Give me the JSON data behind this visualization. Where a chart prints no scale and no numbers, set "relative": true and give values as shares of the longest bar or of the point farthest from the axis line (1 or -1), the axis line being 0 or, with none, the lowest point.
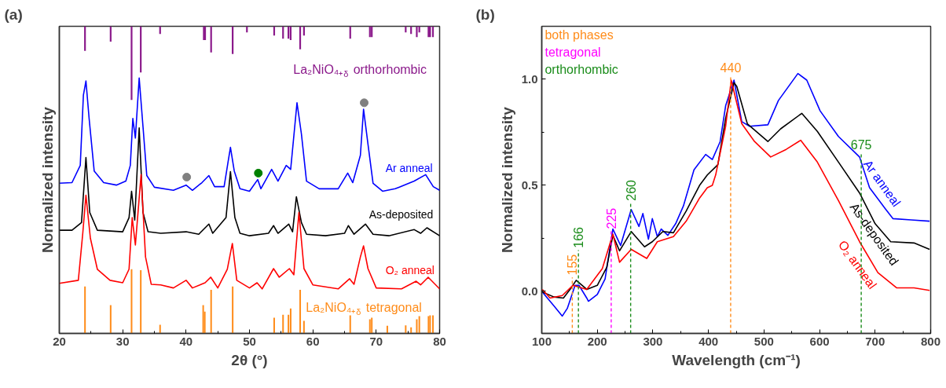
{
  "chart_data": [
    {
      "type": "line",
      "title": "(a)",
      "xlabel": "2θ (°)",
      "ylabel": "Normalized intensity",
      "relative": true,
      "tick_labels": "x",
      "xlim": [
        20,
        80
      ],
      "xticks": [
        20,
        {
          "value": 25,
          "label": null
        },
        30,
        {
          "value": 35,
          "label": null
        },
        40,
        {
          "value": 45,
          "label": null
        },
        50,
        {
          "value": 55,
          "label": null
        },
        60,
        {
          "value": 65,
          "label": null
        },
        70,
        {
          "value": 75,
          "label": null
        },
        80
      ],
      "series": [
        {
          "type": "line",
          "name": "La₂NiO₄₊$_{δ}$ orthorhombic",
          "color": "#8b1a8b",
          "x": [
            24.05,
            24.05,
            null,
            28.1,
            28.1,
            null,
            31.4,
            31.4,
            null,
            32.85,
            32.85,
            null,
            35.9,
            35.9,
            null,
            42.8,
            42.8,
            null,
            43.0,
            43.0,
            null,
            43.95,
            43.95,
            null,
            47.35,
            47.35,
            null,
            49.6,
            49.6,
            null,
            53.9,
            53.9,
            null,
            55.3,
            55.3,
            null,
            56.15,
            56.15,
            null,
            56.5,
            56.5,
            null,
            58.0,
            58.0,
            null,
            58.6,
            58.6,
            null,
            65.9,
            65.9,
            null,
            69.0,
            69.0,
            null,
            69.3,
            69.3,
            null,
            74.65,
            74.65,
            null,
            75.5,
            75.5,
            null,
            76.4,
            76.4,
            null,
            76.8,
            76.8,
            null,
            78.25,
            78.25,
            null,
            78.5,
            78.5,
            null,
            78.95,
            78.95
          ],
          "values": [
            1,
            0.92,
            null,
            1,
            0.95,
            null,
            1,
            0.76,
            null,
            1,
            0.85,
            null,
            1,
            0.975,
            null,
            1,
            0.955,
            null,
            1,
            0.955,
            null,
            1,
            0.915,
            null,
            1,
            0.91,
            null,
            1,
            0.98,
            null,
            1,
            0.97,
            null,
            1,
            0.96,
            null,
            1,
            0.96,
            null,
            1,
            0.955,
            null,
            1,
            0.925,
            null,
            1,
            0.97,
            null,
            1,
            0.96,
            null,
            1,
            0.965,
            null,
            1,
            0.965,
            null,
            1,
            0.98,
            null,
            1,
            0.975,
            null,
            1,
            0.965,
            null,
            1,
            0.98,
            null,
            1,
            0.965,
            null,
            1,
            0.965,
            null,
            1,
            0.965
          ]
        },
        {
          "type": "line",
          "name": "Ar anneal",
          "color": "#0000ff",
          "x": [
            20,
            22,
            23.3,
            23.8,
            24.2,
            24.7,
            25.5,
            27,
            29,
            30.5,
            31.2,
            31.6,
            32.0,
            32.6,
            33.2,
            33.8,
            35,
            38,
            40,
            41,
            42.5,
            43.6,
            44.5,
            46,
            46.6,
            47.0,
            47.6,
            48.5,
            50,
            51.3,
            51.8,
            53.5,
            54.5,
            55.8,
            56.5,
            57.5,
            58.2,
            59,
            61,
            64,
            65.5,
            66.3,
            67.5,
            68,
            68.7,
            69.5,
            71,
            73,
            76,
            77.8,
            79,
            80
          ],
          "values": [
            0.489,
            0.491,
            0.547,
            0.776,
            0.822,
            0.7,
            0.529,
            0.491,
            0.483,
            0.496,
            0.547,
            0.7,
            0.636,
            0.832,
            0.674,
            0.514,
            0.476,
            0.466,
            0.483,
            0.466,
            0.491,
            0.514,
            0.478,
            0.478,
            0.555,
            0.606,
            0.529,
            0.471,
            0.463,
            0.501,
            0.471,
            0.534,
            0.496,
            0.547,
            0.534,
            0.751,
            0.649,
            0.496,
            0.471,
            0.471,
            0.522,
            0.491,
            0.58,
            0.73,
            0.616,
            0.489,
            0.463,
            0.471,
            0.496,
            0.517,
            0.478,
            0.466
          ]
        },
        {
          "type": "line",
          "name": "As-deposited",
          "color": "#000000",
          "x": [
            20,
            22,
            23.5,
            24.2,
            24.8,
            26,
            30,
            31.0,
            31.4,
            31.9,
            32.6,
            33.2,
            34,
            36,
            40,
            42,
            43.6,
            44.2,
            46.3,
            47.0,
            47.7,
            48.5,
            50,
            53,
            53.8,
            54.5,
            56.2,
            56.8,
            57.4,
            58.2,
            59,
            62,
            65,
            65.6,
            66.5,
            68.3,
            69.5,
            72,
            76,
            77,
            78,
            80
          ],
          "values": [
            0.336,
            0.336,
            0.361,
            0.573,
            0.394,
            0.336,
            0.331,
            0.377,
            0.463,
            0.369,
            0.669,
            0.394,
            0.331,
            0.326,
            0.331,
            0.323,
            0.356,
            0.326,
            0.377,
            0.527,
            0.377,
            0.326,
            0.318,
            0.326,
            0.351,
            0.326,
            0.356,
            0.331,
            0.445,
            0.361,
            0.323,
            0.318,
            0.326,
            0.351,
            0.323,
            0.356,
            0.323,
            0.318,
            0.338,
            0.326,
            0.344,
            0.318
          ]
        },
        {
          "type": "line",
          "name": "O₂ anneal",
          "color": "#ff0000",
          "x": [
            20,
            23,
            23.7,
            24.2,
            24.9,
            26,
            28,
            30,
            31.0,
            31.5,
            32.0,
            32.9,
            33.6,
            34.5,
            36,
            38,
            40,
            41,
            43,
            43.9,
            45,
            46.5,
            47.3,
            48,
            50,
            51.2,
            52,
            53.8,
            54.7,
            56.3,
            57.0,
            57.8,
            58.6,
            60,
            64,
            65.8,
            66.5,
            67.5,
            68.0,
            68.7,
            70,
            74,
            76.3,
            77,
            78.2,
            80
          ],
          "values": [
            0.163,
            0.173,
            0.326,
            0.45,
            0.31,
            0.209,
            0.173,
            0.165,
            0.209,
            0.377,
            0.288,
            0.517,
            0.249,
            0.16,
            0.158,
            0.148,
            0.173,
            0.148,
            0.165,
            0.183,
            0.148,
            0.209,
            0.293,
            0.173,
            0.148,
            0.165,
            0.145,
            0.211,
            0.183,
            0.211,
            0.191,
            0.394,
            0.211,
            0.158,
            0.145,
            0.178,
            0.16,
            0.249,
            0.285,
            0.211,
            0.148,
            0.145,
            0.17,
            0.158,
            0.183,
            0.145
          ]
        },
        {
          "type": "scatter",
          "colors": [
            "#808080",
            "#008000",
            "#808080"
          ],
          "x": [
            40.1,
            51.4,
            68.1
          ],
          "values": [
            0.509,
            0.522,
            0.751
          ]
        },
        {
          "type": "bar",
          "name": "La₂NiO₄₊$_{δ}$ tetragonal",
          "color": "#ff8c1a",
          "x": [
            24.05,
            28.1,
            31.4,
            32.85,
            35.9,
            42.7,
            42.95,
            43.95,
            47.35,
            53.9,
            55.3,
            56.15,
            56.5,
            58.0,
            58.6,
            65.9,
            69.0,
            69.3,
            71.75,
            74.65,
            75.5,
            76.4,
            76.8,
            78.25,
            78.5,
            78.95
          ],
          "values": [
            0.153,
            0.092,
            0.209,
            0.206,
            0.028,
            0.092,
            0.071,
            0.142,
            0.153,
            0.051,
            0.061,
            0.061,
            0.081,
            0.142,
            0.041,
            0.059,
            0.046,
            0.051,
            0.025,
            0.026,
            0.02,
            0.046,
            0.056,
            0.056,
            0.059,
            0.059
          ]
        }
      ]
    },
    {
      "type": "line",
      "title": "(b)",
      "xlabel": "Wavelength (cm⁻¹)",
      "ylabel": "Normalized intensity",
      "xlim": [
        100,
        800
      ],
      "ylim": [
        -0.2,
        1.25
      ],
      "xticks": [
        100,
        {
          "value": 150,
          "label": null
        },
        200,
        {
          "value": 250,
          "label": null
        },
        300,
        {
          "value": 350,
          "label": null
        },
        400,
        {
          "value": 450,
          "label": null
        },
        500,
        {
          "value": 550,
          "label": null
        },
        600,
        {
          "value": 650,
          "label": null
        },
        700,
        {
          "value": 750,
          "label": null
        },
        800
      ],
      "yticks": [
        {
          "value": 0,
          "label": "0.0"
        },
        {
          "value": 0.25,
          "label": null
        },
        {
          "value": 0.5,
          "label": "0.5"
        },
        {
          "value": 0.75,
          "label": null
        },
        {
          "value": 1,
          "label": "1.0"
        }
      ],
      "annotations": [
        "both phases",
        "tetragonal",
        "orthorhombic"
      ],
      "ref_lines": [
        {
          "axis": "x",
          "value": 155,
          "label": "155",
          "color": "#ff8c1a",
          "line_style": "dashed"
        },
        {
          "axis": "x",
          "value": 225,
          "label": "225",
          "color": "#ff00ff",
          "line_style": "dashed"
        },
        {
          "axis": "x",
          "value": 166,
          "label": "166",
          "color": "#1a8c1a",
          "line_style": "dashed"
        },
        {
          "axis": "x",
          "value": 260,
          "label": "260",
          "color": "#1a8c1a",
          "line_style": "dashed"
        },
        {
          "axis": "x",
          "value": 440,
          "label": "440",
          "color": "#ff8c1a",
          "line_style": "dashed"
        },
        {
          "axis": "x",
          "value": 675,
          "label": "675",
          "color": "#1a8c1a",
          "line_style": "dashed"
        }
      ],
      "series": [
        {
          "name": "Ar anneal",
          "color": "#0000ff",
          "x": [
            101,
            122,
            137,
            146,
            160,
            167,
            181,
            184,
            200,
            214,
            228,
            242,
            261,
            275,
            282,
            292,
            299,
            308,
            315,
            327,
            341,
            355,
            374,
            395,
            407,
            421,
            431,
            446,
            460,
            474,
            507,
            526,
            561,
            577,
            601,
            634,
            672,
            690,
            718,
            732,
            765,
            798
          ],
          "values": [
            -0.004,
            -0.07,
            -0.118,
            -0.082,
            0.027,
            0.027,
            -0.033,
            -0.048,
            -0.016,
            0.057,
            0.293,
            0.215,
            0.385,
            0.305,
            0.366,
            0.245,
            0.342,
            0.257,
            0.293,
            0.263,
            0.318,
            0.402,
            0.572,
            0.645,
            0.621,
            0.705,
            0.875,
            0.996,
            0.8,
            0.778,
            0.785,
            0.9,
            1.027,
            0.996,
            0.851,
            0.73,
            0.633,
            0.488,
            0.39,
            0.342,
            0.336,
            0.33
          ]
        },
        {
          "name": "As-deposited",
          "color": "#000000",
          "x": [
            101,
            122,
            139,
            153,
            162,
            181,
            200,
            217,
            228,
            240,
            261,
            285,
            299,
            318,
            337,
            360,
            384,
            398,
            412,
            417,
            431,
            446,
            451,
            470,
            507,
            530,
            568,
            596,
            634,
            672,
            700,
            728,
            770,
            798
          ],
          "values": [
            -0.004,
            -0.028,
            -0.033,
            0.015,
            0.051,
            0.008,
            0.027,
            0.112,
            0.263,
            0.19,
            0.281,
            0.209,
            0.233,
            0.281,
            0.275,
            0.378,
            0.499,
            0.548,
            0.584,
            0.597,
            0.815,
            0.984,
            0.966,
            0.79,
            0.706,
            0.766,
            0.839,
            0.754,
            0.609,
            0.463,
            0.318,
            0.233,
            0.227,
            0.197
          ]
        },
        {
          "name": "O₂ anneal",
          "color": "#ff0000",
          "x": [
            101,
            115,
            137,
            156,
            181,
            209,
            228,
            240,
            261,
            289,
            308,
            337,
            360,
            384,
            398,
            407,
            413,
            431,
            441,
            460,
            483,
            512,
            540,
            566,
            596,
            634,
            672,
            705,
            739,
            770,
            798
          ],
          "values": [
            0.008,
            -0.033,
            -0.021,
            0.027,
            0.008,
            0.106,
            0.269,
            0.136,
            0.197,
            0.154,
            0.233,
            0.257,
            0.33,
            0.439,
            0.488,
            0.499,
            0.548,
            0.778,
            0.996,
            0.79,
            0.706,
            0.633,
            0.669,
            0.712,
            0.609,
            0.427,
            0.233,
            0.087,
            0.015,
            0.015,
            0.003
          ]
        }
      ]
    }
  ]
}
